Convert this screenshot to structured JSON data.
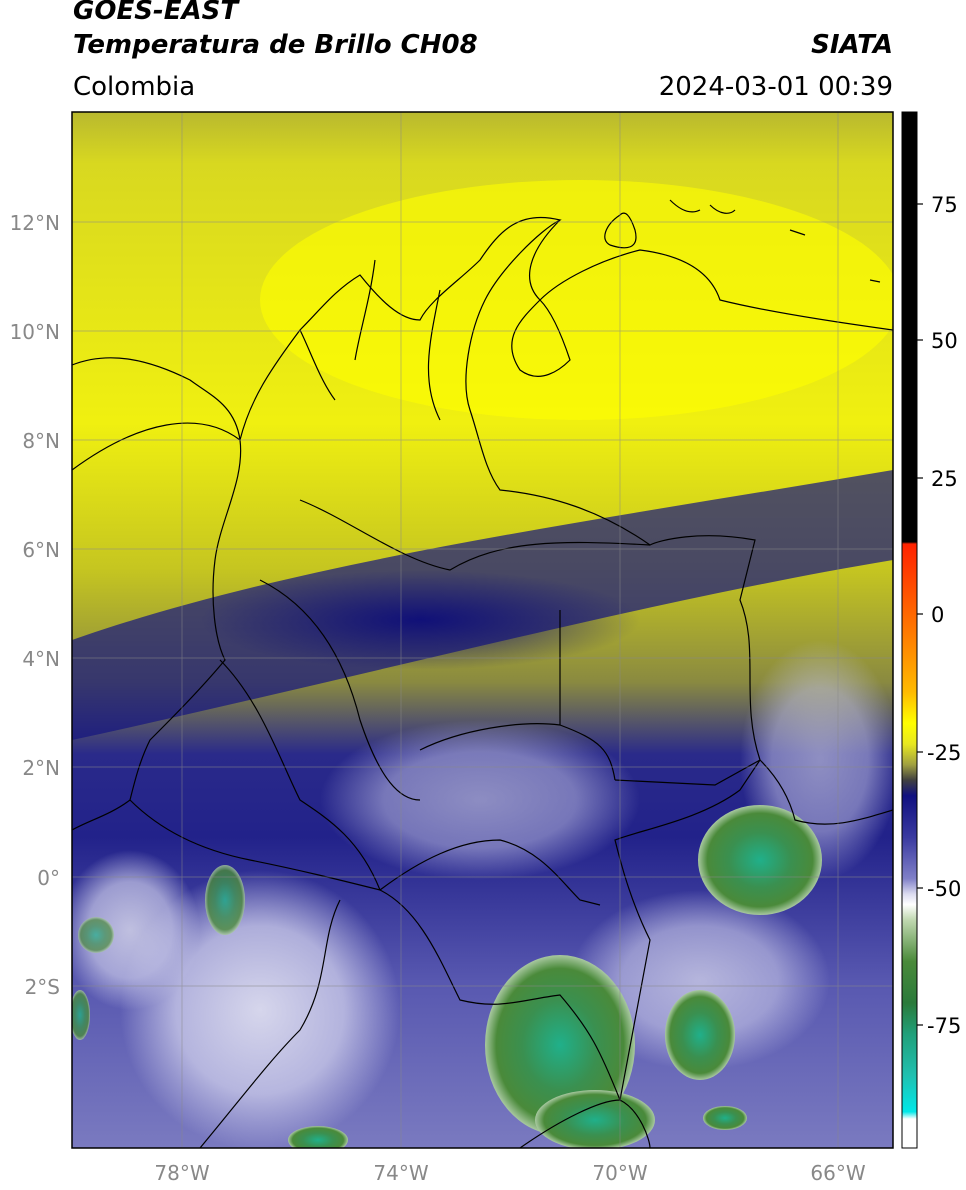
{
  "header": {
    "satellite": "GOES-EAST",
    "product": "Temperatura de Brillo CH08",
    "region": "Colombia",
    "agency": "SIATA",
    "datetime": "2024-03-01 00:39"
  },
  "map": {
    "lon_range": [
      -80,
      -65
    ],
    "lat_range": [
      -5,
      14
    ],
    "lon_ticks": [
      {
        "value": -78,
        "label": "78°W"
      },
      {
        "value": -74,
        "label": "74°W"
      },
      {
        "value": -70,
        "label": "70°W"
      },
      {
        "value": -66,
        "label": "66°W"
      }
    ],
    "lat_ticks": [
      {
        "value": 12,
        "label": "12°N"
      },
      {
        "value": 10,
        "label": "10°N"
      },
      {
        "value": 8,
        "label": "8°N"
      },
      {
        "value": 6,
        "label": "6°N"
      },
      {
        "value": 4,
        "label": "4°N"
      },
      {
        "value": 2,
        "label": "2°N"
      },
      {
        "value": 0,
        "label": "0°"
      },
      {
        "value": -2,
        "label": "2°S"
      }
    ],
    "grid": true
  },
  "colorbar": {
    "range": [
      -95,
      90
    ],
    "ticks": [
      {
        "value": 75,
        "label": "75"
      },
      {
        "value": 50,
        "label": "50"
      },
      {
        "value": 25,
        "label": "25"
      },
      {
        "value": 0,
        "label": "0"
      },
      {
        "value": -25,
        "label": "-25"
      },
      {
        "value": -50,
        "label": "-50"
      },
      {
        "value": -75,
        "label": "-75"
      }
    ],
    "colors": {
      "black": "#000000",
      "red": "#ff2200",
      "orange": "#ff9900",
      "yellow": "#ffff00",
      "olive": "#8a8a20",
      "navy": "#1a1a80",
      "blue": "#3a3aa0",
      "lavender": "#c8c8e8",
      "white": "#ffffff",
      "green": "#3a8a3a",
      "teal": "#20b090",
      "cyan": "#00e8e8"
    }
  }
}
